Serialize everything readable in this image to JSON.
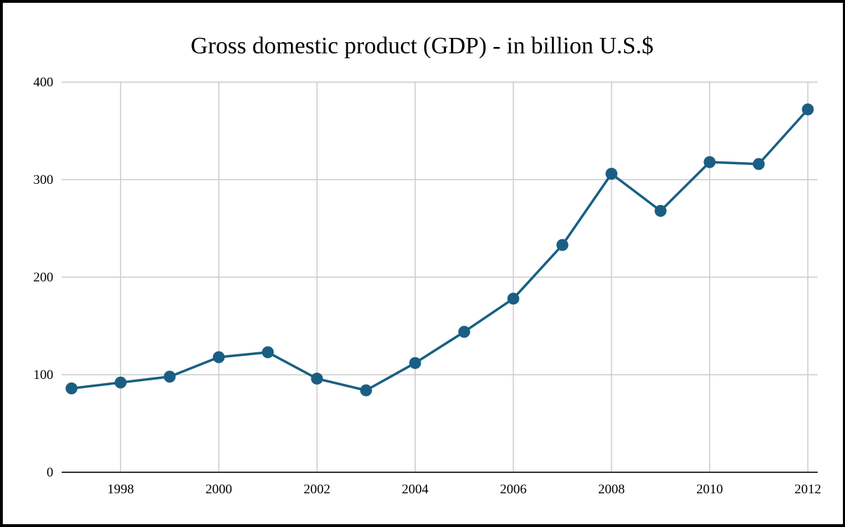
{
  "chart_data": {
    "type": "line",
    "title": "Gross domestic product (GDP) - in billion U.S.$",
    "xlabel": "",
    "ylabel": "",
    "x": [
      1997,
      1998,
      1999,
      2000,
      2001,
      2002,
      2003,
      2004,
      2005,
      2006,
      2007,
      2008,
      2009,
      2010,
      2011,
      2012
    ],
    "series": [
      {
        "name": "GDP (billion U.S.$)",
        "color": "#1a5f83",
        "values": [
          86,
          92,
          98,
          118,
          123,
          96,
          84,
          112,
          144,
          178,
          233,
          306,
          268,
          318,
          316,
          372
        ]
      }
    ],
    "xlim": [
      1996.8,
      2012.2
    ],
    "ylim": [
      0,
      400
    ],
    "x_ticks": [
      "1998",
      "2000",
      "2002",
      "2004",
      "2006",
      "2008",
      "2010",
      "2012"
    ],
    "y_ticks": [
      "0",
      "100",
      "200",
      "300",
      "400"
    ],
    "grid": true,
    "legend": "none"
  }
}
